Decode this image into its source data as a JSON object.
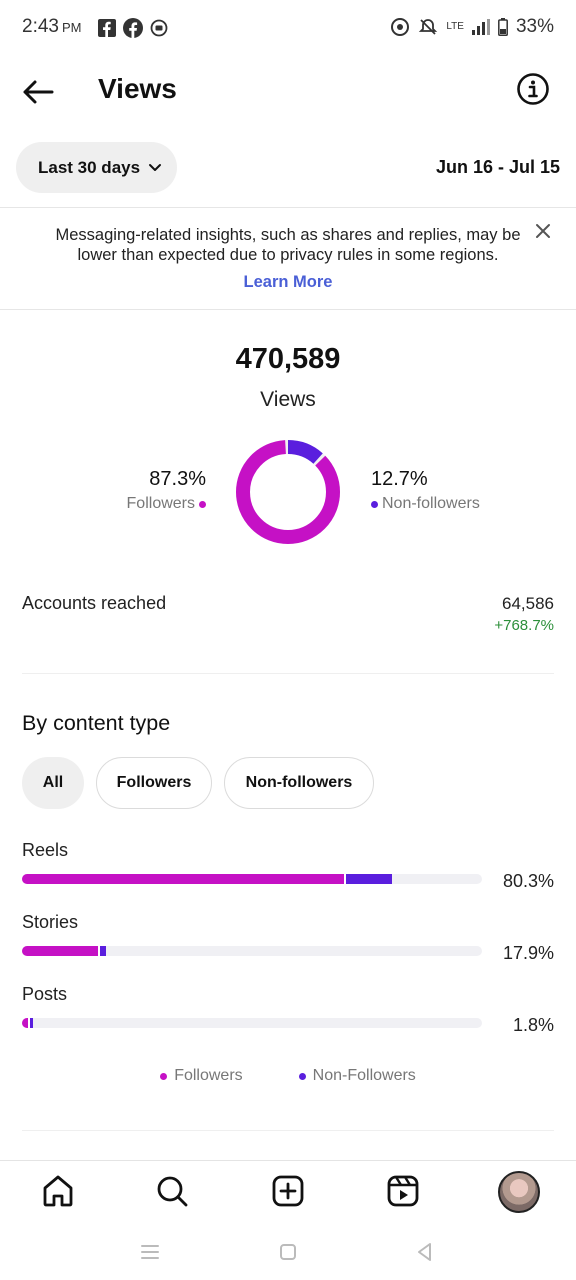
{
  "status_bar": {
    "time": "2:43",
    "ampm": "PM",
    "battery": "33%",
    "net": "LTE"
  },
  "header": {
    "title": "Views"
  },
  "range": {
    "label": "Last 30 days",
    "dates": "Jun 16 - Jul 15"
  },
  "notice": {
    "text": "Messaging-related insights, such as shares and replies, may be lower than expected due to privacy rules in some regions.",
    "link": "Learn More"
  },
  "summary": {
    "total": "470,589",
    "label": "Views",
    "followers_pct": "87.3%",
    "followers_label": "Followers",
    "nonfollowers_pct": "12.7%",
    "nonfollowers_label": "Non-followers",
    "followers_fraction": 0.873,
    "nonfollowers_fraction": 0.127
  },
  "accounts": {
    "label": "Accounts reached",
    "value": "64,586",
    "change": "+768.7%"
  },
  "content_type": {
    "title": "By content type",
    "filters": [
      "All",
      "Followers",
      "Non-followers"
    ],
    "rows": [
      {
        "label": "Reels",
        "pct": "80.3%",
        "followers_fraction": 0.7,
        "nonfollowers_fraction": 0.1
      },
      {
        "label": "Stories",
        "pct": "17.9%",
        "followers_fraction": 0.165,
        "nonfollowers_fraction": 0.014
      },
      {
        "label": "Posts",
        "pct": "1.8%",
        "followers_fraction": 0.012,
        "nonfollowers_fraction": 0.006
      }
    ],
    "legend": {
      "followers": "Followers",
      "nonfollowers": "Non-Followers"
    }
  },
  "colors": {
    "followers": "#c511c5",
    "nonfollowers": "#5a1ede",
    "positive": "#2c8f3a",
    "link": "#4a5fd6"
  },
  "icons": {
    "nav": [
      "home-icon",
      "search-icon",
      "create-icon",
      "reels-icon",
      "profile-avatar"
    ]
  }
}
